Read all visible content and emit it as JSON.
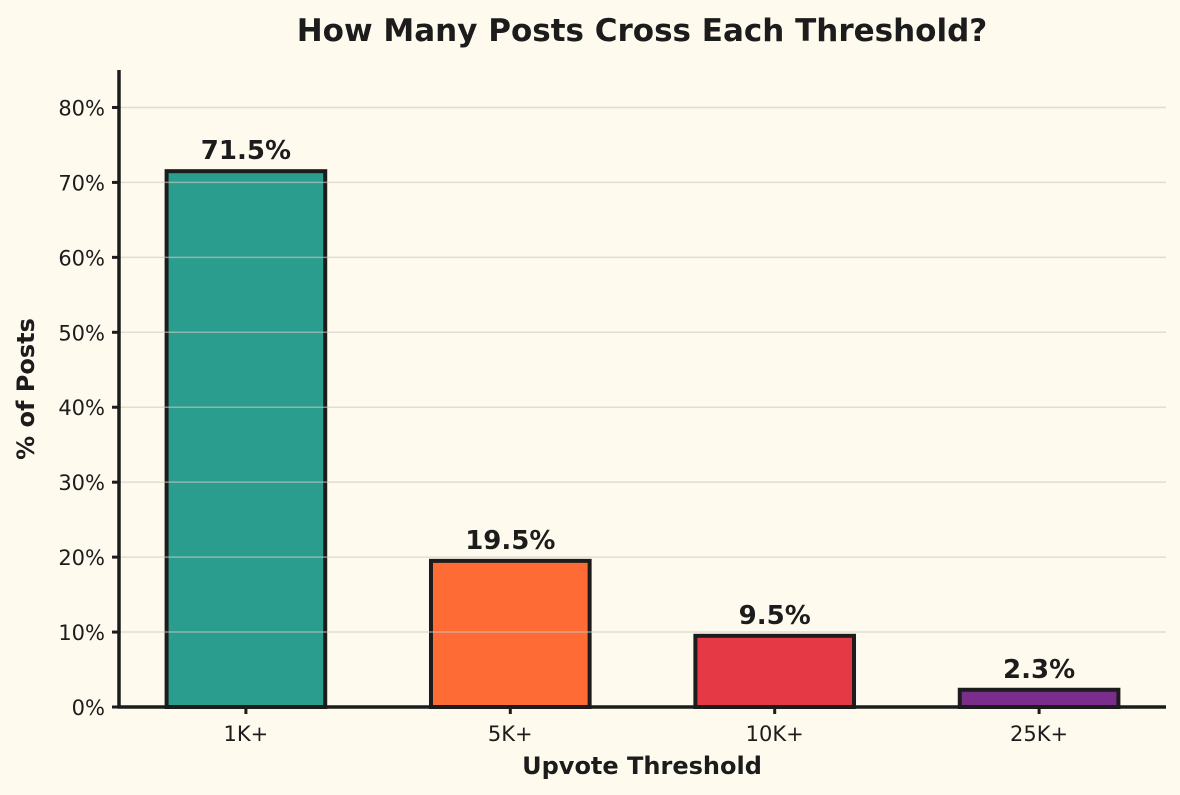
{
  "chart_data": {
    "type": "bar",
    "title": "How Many Posts Cross Each Threshold?",
    "xlabel": "Upvote Threshold",
    "ylabel": "% of Posts",
    "categories": [
      "1K+",
      "5K+",
      "10K+",
      "25K+"
    ],
    "values": [
      71.5,
      19.5,
      9.5,
      2.3
    ],
    "data_labels": [
      "71.5%",
      "19.5%",
      "9.5%",
      "2.3%"
    ],
    "colors": [
      "#2a9d8f",
      "#ff6b35",
      "#e63946",
      "#7b2d8b"
    ],
    "ylim": [
      0,
      85
    ],
    "yticks": [
      0,
      10,
      20,
      30,
      40,
      50,
      60,
      70,
      80
    ],
    "ytick_labels": [
      "0%",
      "10%",
      "20%",
      "30%",
      "40%",
      "50%",
      "60%",
      "70%",
      "80%"
    ],
    "grid": true,
    "legend": "none"
  }
}
